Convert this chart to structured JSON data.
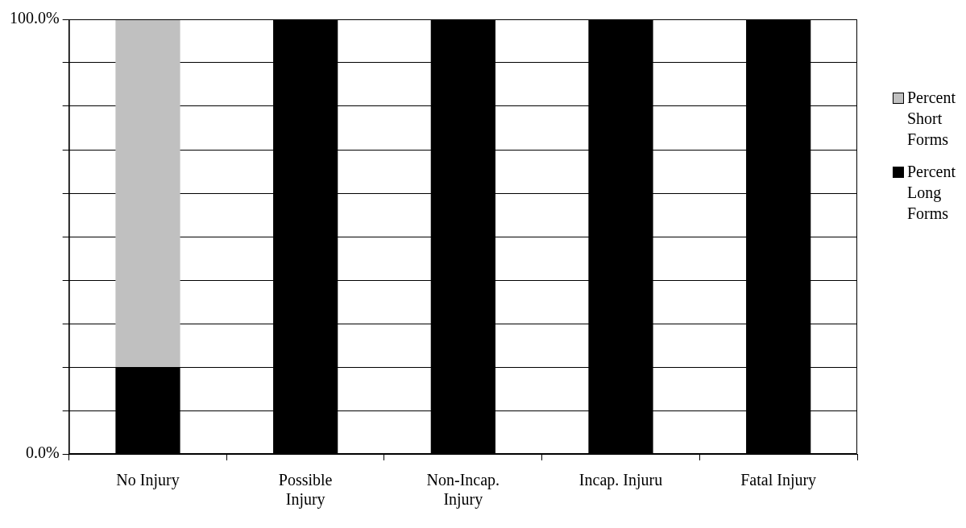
{
  "chart_data": {
    "type": "bar",
    "stacked": true,
    "categories": [
      "No Injury",
      "Possible Injury",
      "Non-Incap. Injury",
      "Incap. Injuru",
      "Fatal Injury"
    ],
    "series": [
      {
        "name": "Percent Long Forms",
        "color": "#000000",
        "values": [
          20,
          100,
          100,
          100,
          100
        ]
      },
      {
        "name": "Percent Short Forms",
        "color": "#c0c0c0",
        "values": [
          80,
          0,
          0,
          0,
          0
        ]
      }
    ],
    "ylim": [
      0,
      100
    ],
    "yticks": [
      {
        "value": 0,
        "label": "0.0%"
      },
      {
        "value": 10,
        "label": null
      },
      {
        "value": 20,
        "label": null
      },
      {
        "value": 30,
        "label": null
      },
      {
        "value": 40,
        "label": null
      },
      {
        "value": 50,
        "label": null
      },
      {
        "value": 60,
        "label": null
      },
      {
        "value": 70,
        "label": null
      },
      {
        "value": 80,
        "label": null
      },
      {
        "value": 90,
        "label": null
      },
      {
        "value": 100,
        "label": "100.0%"
      }
    ],
    "grid": "y",
    "legend": "right"
  }
}
